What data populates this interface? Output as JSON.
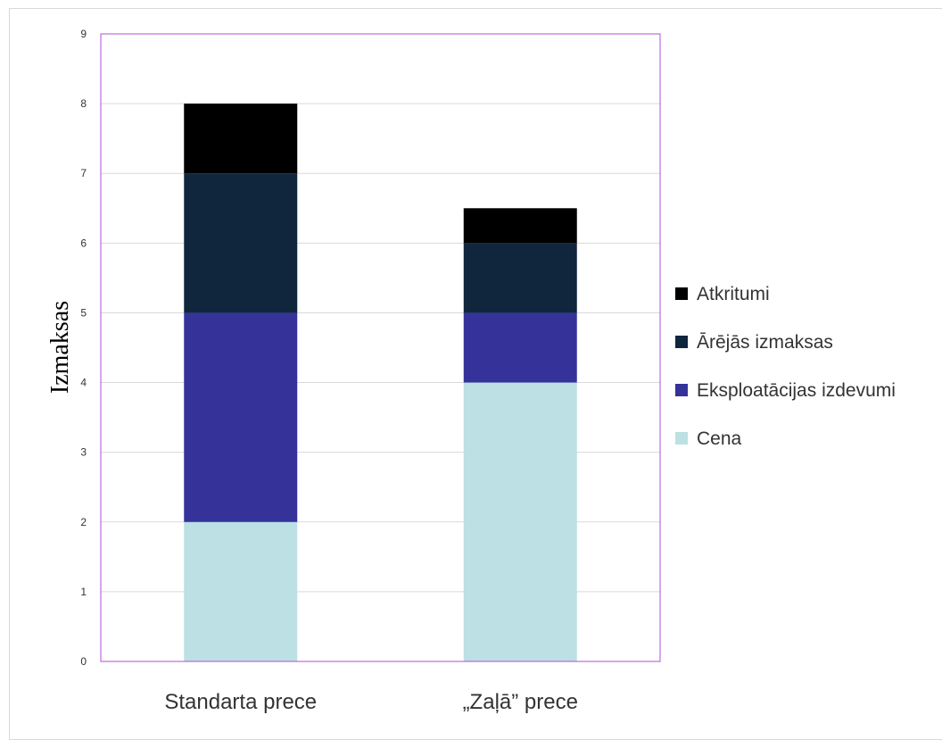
{
  "chart_data": {
    "type": "bar",
    "stacked": true,
    "categories": [
      "Standarta prece",
      "„Zaļā” prece"
    ],
    "series": [
      {
        "name": "Cena",
        "values": [
          2,
          4
        ],
        "color": "#bce0e3"
      },
      {
        "name": "Eksploatācijas izdevumi",
        "values": [
          3,
          1
        ],
        "color": "#35339a"
      },
      {
        "name": "Ārējās izmaksas",
        "values": [
          2,
          1
        ],
        "color": "#10263d"
      },
      {
        "name": "Atkritumi",
        "values": [
          1,
          0.5
        ],
        "color": "#000000"
      }
    ],
    "title": "",
    "xlabel": "",
    "ylabel": "Izmaksas",
    "ylim": [
      0,
      9
    ],
    "yticks": [
      "0",
      "1",
      "2",
      "3",
      "4",
      "5",
      "6",
      "7",
      "8",
      "9"
    ],
    "grid": true,
    "legend_position": "right",
    "plot_border_color": "#b04fd0",
    "gridline_color": "#d9d9d9"
  }
}
